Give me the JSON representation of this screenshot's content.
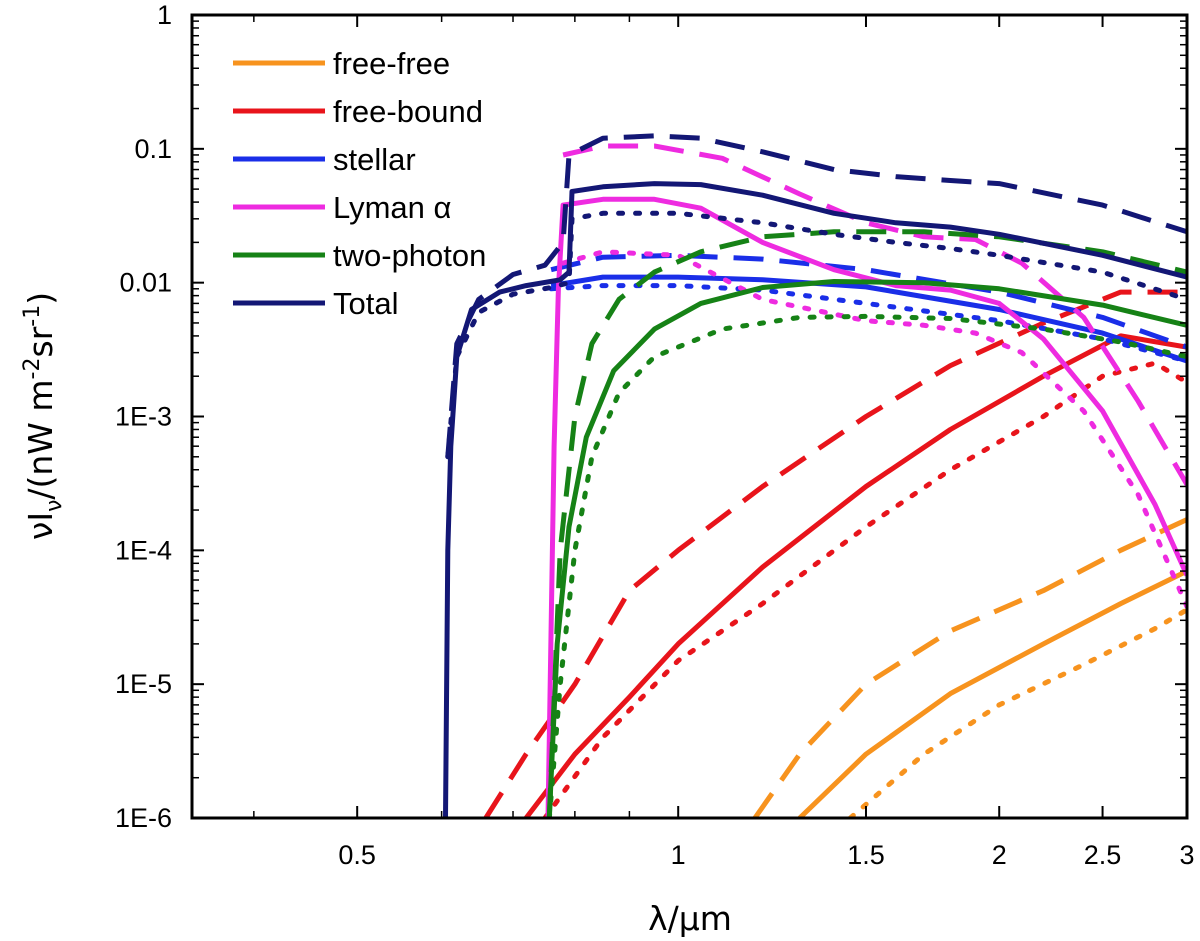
{
  "chart_data": {
    "type": "line",
    "title": "",
    "xlabel": "λ/μm",
    "ylabel_parts": {
      "main": "νI",
      "sub": "ν",
      "units_open": "/(nW m",
      "exp1": "-2",
      "mid": "sr",
      "exp2": "-1",
      "close": ")"
    },
    "xscale": "log",
    "yscale": "log",
    "xlim": [
      0.35,
      3.0
    ],
    "ylim": [
      1e-06,
      1
    ],
    "x_ticks": [
      {
        "value": 0.5,
        "label": "0.5"
      },
      {
        "value": 1,
        "label": "1"
      },
      {
        "value": 1.5,
        "label": "1.5"
      },
      {
        "value": 2,
        "label": "2"
      },
      {
        "value": 2.5,
        "label": "2.5"
      },
      {
        "value": 3,
        "label": "3"
      }
    ],
    "y_ticks": [
      {
        "value": 1e-06,
        "label": "1E-6"
      },
      {
        "value": 1e-05,
        "label": "1E-5"
      },
      {
        "value": 0.0001,
        "label": "1E-4"
      },
      {
        "value": 0.001,
        "label": "1E-3"
      },
      {
        "value": 0.01,
        "label": "0.01"
      },
      {
        "value": 0.1,
        "label": "0.1"
      },
      {
        "value": 1,
        "label": "1"
      }
    ],
    "legend_position": "top-left",
    "legend": [
      {
        "label": "free-free",
        "color": "#F7931E"
      },
      {
        "label": "free-bound",
        "color": "#E8141B"
      },
      {
        "label": "stellar",
        "color": "#1A2EE8"
      },
      {
        "label": "Lyman α",
        "color": "#EE2BE0"
      },
      {
        "label": "two-photon",
        "color": "#168216"
      },
      {
        "label": "Total",
        "color": "#131775"
      }
    ],
    "series": [
      {
        "name": "free-free",
        "style": "solid",
        "color": "#F7931E",
        "points": [
          [
            1.3,
            1e-06
          ],
          [
            1.5,
            3e-06
          ],
          [
            1.8,
            8.5e-06
          ],
          [
            2.2,
            2e-05
          ],
          [
            2.6,
            4e-05
          ],
          [
            3.0,
            7e-05
          ]
        ]
      },
      {
        "name": "free-free",
        "style": "dashed",
        "color": "#F7931E",
        "points": [
          [
            1.18,
            1e-06
          ],
          [
            1.3,
            3e-06
          ],
          [
            1.5,
            1e-05
          ],
          [
            1.8,
            2.5e-05
          ],
          [
            2.2,
            5e-05
          ],
          [
            2.6,
            0.0001
          ],
          [
            3.0,
            0.00017
          ]
        ]
      },
      {
        "name": "free-free",
        "style": "dotted",
        "color": "#F7931E",
        "points": [
          [
            1.45,
            1e-06
          ],
          [
            1.7,
            3e-06
          ],
          [
            2.0,
            7e-06
          ],
          [
            2.4,
            1.4e-05
          ],
          [
            2.8,
            2.6e-05
          ],
          [
            3.0,
            3.6e-05
          ]
        ]
      },
      {
        "name": "free-bound",
        "style": "solid",
        "color": "#E8141B",
        "points": [
          [
            0.72,
            1e-06
          ],
          [
            0.8,
            3e-06
          ],
          [
            0.9,
            8e-06
          ],
          [
            1.0,
            2e-05
          ],
          [
            1.2,
            7.5e-05
          ],
          [
            1.5,
            0.0003
          ],
          [
            1.8,
            0.0008
          ],
          [
            2.2,
            0.002
          ],
          [
            2.6,
            0.004
          ],
          [
            3.0,
            0.0033
          ]
        ]
      },
      {
        "name": "free-bound",
        "style": "dashed",
        "color": "#E8141B",
        "points": [
          [
            0.66,
            1e-06
          ],
          [
            0.72,
            3e-06
          ],
          [
            0.8,
            1e-05
          ],
          [
            0.9,
            5e-05
          ],
          [
            1.0,
            0.0001
          ],
          [
            1.2,
            0.0003
          ],
          [
            1.5,
            0.001
          ],
          [
            1.8,
            0.0024
          ],
          [
            2.2,
            0.005
          ],
          [
            2.6,
            0.0085
          ],
          [
            3.0,
            0.0085
          ]
        ]
      },
      {
        "name": "free-bound",
        "style": "dotted",
        "color": "#E8141B",
        "points": [
          [
            0.75,
            1e-06
          ],
          [
            0.85,
            4e-06
          ],
          [
            1.0,
            1.5e-05
          ],
          [
            1.2,
            4e-05
          ],
          [
            1.5,
            0.00015
          ],
          [
            1.8,
            0.0004
          ],
          [
            2.2,
            0.001
          ],
          [
            2.5,
            0.002
          ],
          [
            2.8,
            0.0025
          ],
          [
            3.0,
            0.0018
          ]
        ]
      },
      {
        "name": "stellar",
        "style": "solid",
        "color": "#1A2EE8",
        "points": [
          [
            0.76,
            0.0095
          ],
          [
            0.85,
            0.011
          ],
          [
            1.0,
            0.011
          ],
          [
            1.2,
            0.0105
          ],
          [
            1.5,
            0.0093
          ],
          [
            2.0,
            0.0063
          ],
          [
            2.5,
            0.0042
          ],
          [
            3.0,
            0.0026
          ]
        ]
      },
      {
        "name": "stellar",
        "style": "dashed",
        "color": "#1A2EE8",
        "points": [
          [
            0.76,
            0.0125
          ],
          [
            0.85,
            0.0155
          ],
          [
            1.0,
            0.016
          ],
          [
            1.2,
            0.015
          ],
          [
            1.5,
            0.0125
          ],
          [
            2.0,
            0.0085
          ],
          [
            2.5,
            0.0055
          ],
          [
            3.0,
            0.0033
          ]
        ]
      },
      {
        "name": "stellar",
        "style": "dotted",
        "color": "#1A2EE8",
        "points": [
          [
            0.76,
            0.009
          ],
          [
            0.85,
            0.0095
          ],
          [
            1.0,
            0.0095
          ],
          [
            1.2,
            0.0088
          ],
          [
            1.5,
            0.007
          ],
          [
            2.0,
            0.0052
          ],
          [
            2.5,
            0.0038
          ],
          [
            3.0,
            0.0026
          ]
        ]
      },
      {
        "name": "Lyman α",
        "style": "solid",
        "color": "#EE2BE0",
        "points": [
          [
            0.755,
            1e-06
          ],
          [
            0.765,
            0.0006
          ],
          [
            0.772,
            0.009
          ],
          [
            0.78,
            0.038
          ],
          [
            0.85,
            0.042
          ],
          [
            0.95,
            0.042
          ],
          [
            1.05,
            0.036
          ],
          [
            1.2,
            0.02
          ],
          [
            1.4,
            0.0125
          ],
          [
            1.6,
            0.0095
          ],
          [
            1.8,
            0.0088
          ],
          [
            2.0,
            0.007
          ],
          [
            2.2,
            0.0038
          ],
          [
            2.5,
            0.0011
          ],
          [
            2.8,
            0.00022
          ],
          [
            3.0,
            6.5e-05
          ]
        ]
      },
      {
        "name": "Lyman α",
        "style": "dashed",
        "color": "#EE2BE0",
        "points": [
          [
            0.78,
            0.09
          ],
          [
            0.85,
            0.105
          ],
          [
            0.95,
            0.105
          ],
          [
            1.1,
            0.085
          ],
          [
            1.3,
            0.046
          ],
          [
            1.5,
            0.028
          ],
          [
            1.7,
            0.022
          ],
          [
            1.9,
            0.021
          ],
          [
            2.1,
            0.014
          ],
          [
            2.4,
            0.0055
          ],
          [
            2.7,
            0.0013
          ],
          [
            3.0,
            0.00031
          ]
        ]
      },
      {
        "name": "Lyman α",
        "style": "dotted",
        "color": "#EE2BE0",
        "points": [
          [
            0.78,
            0.014
          ],
          [
            0.85,
            0.017
          ],
          [
            1.0,
            0.016
          ],
          [
            1.2,
            0.0075
          ],
          [
            1.5,
            0.0052
          ],
          [
            1.7,
            0.0048
          ],
          [
            1.9,
            0.0042
          ],
          [
            2.1,
            0.003
          ],
          [
            2.4,
            0.0011
          ],
          [
            2.7,
            0.00026
          ],
          [
            3.0,
            3.8e-05
          ]
        ]
      },
      {
        "name": "two-photon",
        "style": "solid",
        "color": "#168216",
        "points": [
          [
            0.757,
            1e-06
          ],
          [
            0.77,
            2e-05
          ],
          [
            0.79,
            0.00015
          ],
          [
            0.82,
            0.0007
          ],
          [
            0.87,
            0.0022
          ],
          [
            0.95,
            0.0045
          ],
          [
            1.05,
            0.007
          ],
          [
            1.2,
            0.0092
          ],
          [
            1.4,
            0.0102
          ],
          [
            1.7,
            0.01
          ],
          [
            2.0,
            0.009
          ],
          [
            2.5,
            0.0068
          ],
          [
            3.0,
            0.0048
          ]
        ]
      },
      {
        "name": "two-photon",
        "style": "dashed",
        "color": "#168216",
        "points": [
          [
            0.757,
            1e-06
          ],
          [
            0.775,
            0.0001
          ],
          [
            0.8,
            0.001
          ],
          [
            0.83,
            0.0035
          ],
          [
            0.88,
            0.0075
          ],
          [
            0.95,
            0.012
          ],
          [
            1.05,
            0.017
          ],
          [
            1.2,
            0.022
          ],
          [
            1.4,
            0.024
          ],
          [
            1.7,
            0.024
          ],
          [
            2.0,
            0.022
          ],
          [
            2.5,
            0.017
          ],
          [
            3.0,
            0.012
          ]
        ]
      },
      {
        "name": "two-photon",
        "style": "dotted",
        "color": "#168216",
        "points": [
          [
            0.757,
            1e-06
          ],
          [
            0.775,
            1e-05
          ],
          [
            0.8,
            0.0001
          ],
          [
            0.83,
            0.0005
          ],
          [
            0.88,
            0.0015
          ],
          [
            0.95,
            0.0028
          ],
          [
            1.1,
            0.0045
          ],
          [
            1.3,
            0.0055
          ],
          [
            1.5,
            0.0056
          ],
          [
            1.8,
            0.0054
          ],
          [
            2.2,
            0.0045
          ],
          [
            2.6,
            0.0036
          ],
          [
            3.0,
            0.0028
          ]
        ]
      },
      {
        "name": "Total",
        "style": "solid",
        "color": "#131775",
        "points": [
          [
            0.605,
            1e-06
          ],
          [
            0.608,
            0.0001
          ],
          [
            0.612,
            0.0006
          ],
          [
            0.62,
            0.0028
          ],
          [
            0.64,
            0.0063
          ],
          [
            0.68,
            0.0085
          ],
          [
            0.72,
            0.0095
          ],
          [
            0.775,
            0.0105
          ],
          [
            0.79,
            0.012
          ],
          [
            0.795,
            0.048
          ],
          [
            0.85,
            0.052
          ],
          [
            0.95,
            0.055
          ],
          [
            1.05,
            0.054
          ],
          [
            1.2,
            0.045
          ],
          [
            1.4,
            0.033
          ],
          [
            1.6,
            0.028
          ],
          [
            1.8,
            0.026
          ],
          [
            2.0,
            0.023
          ],
          [
            2.5,
            0.016
          ],
          [
            3.0,
            0.011
          ]
        ]
      },
      {
        "name": "Total",
        "style": "dashed",
        "color": "#131775",
        "points": [
          [
            0.608,
            0.0005
          ],
          [
            0.62,
            0.0035
          ],
          [
            0.65,
            0.0075
          ],
          [
            0.7,
            0.0115
          ],
          [
            0.75,
            0.0135
          ],
          [
            0.78,
            0.02
          ],
          [
            0.79,
            0.09
          ],
          [
            0.85,
            0.12
          ],
          [
            0.95,
            0.125
          ],
          [
            1.05,
            0.12
          ],
          [
            1.2,
            0.095
          ],
          [
            1.4,
            0.07
          ],
          [
            1.6,
            0.062
          ],
          [
            1.8,
            0.058
          ],
          [
            2.0,
            0.055
          ],
          [
            2.5,
            0.038
          ],
          [
            3.0,
            0.024
          ]
        ]
      },
      {
        "name": "Total",
        "style": "dotted",
        "color": "#131775",
        "points": [
          [
            0.608,
            0.0005
          ],
          [
            0.62,
            0.0028
          ],
          [
            0.65,
            0.006
          ],
          [
            0.7,
            0.0082
          ],
          [
            0.76,
            0.0092
          ],
          [
            0.79,
            0.01
          ],
          [
            0.795,
            0.03
          ],
          [
            0.85,
            0.033
          ],
          [
            1.0,
            0.033
          ],
          [
            1.2,
            0.028
          ],
          [
            1.4,
            0.023
          ],
          [
            1.6,
            0.02
          ],
          [
            1.8,
            0.018
          ],
          [
            2.0,
            0.016
          ],
          [
            2.5,
            0.012
          ],
          [
            3.0,
            0.0075
          ]
        ]
      }
    ]
  }
}
